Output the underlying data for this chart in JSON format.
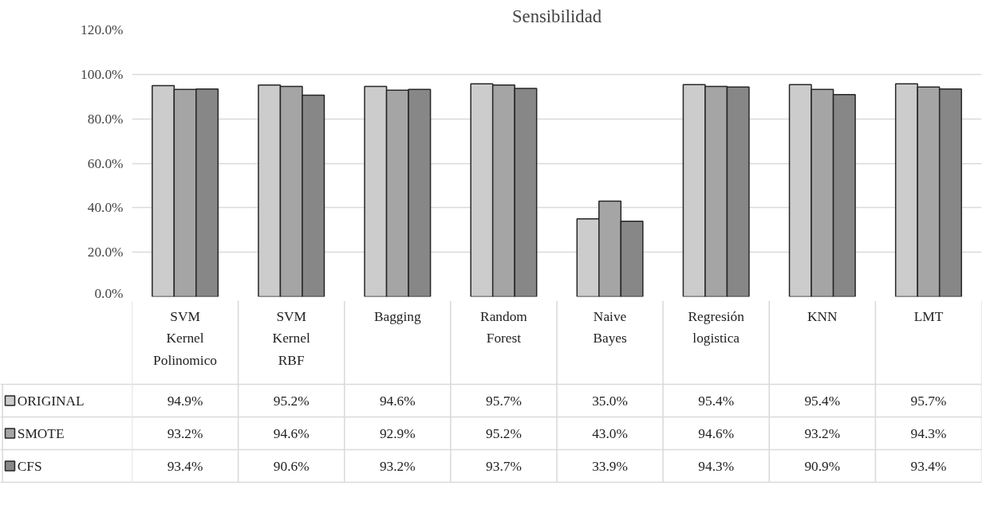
{
  "chart_data": {
    "type": "bar",
    "title": "Sensibilidad",
    "categories": [
      "SVM Kernel Polinomico",
      "SVM Kernel RBF",
      "Bagging",
      "Random Forest",
      "Naive Bayes",
      "Regresión logistica",
      "KNN",
      "LMT"
    ],
    "series": [
      {
        "name": "ORIGINAL",
        "color": "#cccccc",
        "values": [
          94.9,
          95.2,
          94.6,
          95.7,
          35.0,
          95.4,
          95.4,
          95.7
        ],
        "value_labels": [
          "94.9%",
          "95.2%",
          "94.6%",
          "95.7%",
          "35.0%",
          "95.4%",
          "95.4%",
          "95.7%"
        ]
      },
      {
        "name": "SMOTE",
        "color": "#a5a5a5",
        "values": [
          93.2,
          94.6,
          92.9,
          95.2,
          43.0,
          94.6,
          93.2,
          94.3
        ],
        "value_labels": [
          "93.2%",
          "94.6%",
          "92.9%",
          "95.2%",
          "43.0%",
          "94.6%",
          "93.2%",
          "94.3%"
        ]
      },
      {
        "name": "CFS",
        "color": "#878787",
        "values": [
          93.4,
          90.6,
          93.2,
          93.7,
          33.9,
          94.3,
          90.9,
          93.4
        ],
        "value_labels": [
          "93.4%",
          "90.6%",
          "93.2%",
          "93.7%",
          "33.9%",
          "94.3%",
          "90.9%",
          "93.4%"
        ]
      }
    ],
    "ylim": [
      0,
      120
    ],
    "yticks": [
      {
        "value": 0,
        "label": "0.0%"
      },
      {
        "value": 20,
        "label": "20.0%"
      },
      {
        "value": 40,
        "label": "40.0%"
      },
      {
        "value": 60,
        "label": "60.0%"
      },
      {
        "value": 80,
        "label": "80.0%"
      },
      {
        "value": 100,
        "label": "100.0%"
      },
      {
        "value": 120,
        "label": "120.0%"
      }
    ],
    "grid": "y",
    "legend": "bottom left"
  }
}
